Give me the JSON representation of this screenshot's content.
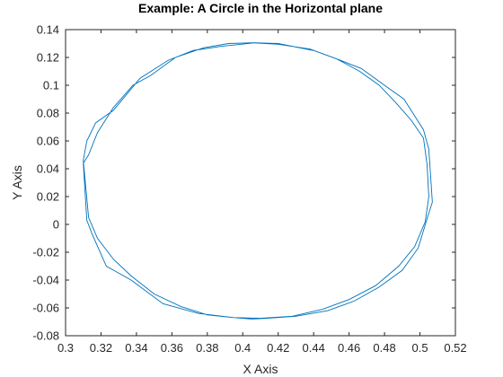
{
  "chart_data": {
    "type": "line",
    "title": "Example: A Circle in the Horizontal plane",
    "xlabel": "X Axis",
    "ylabel": "Y Axis",
    "xlim": [
      0.3,
      0.52
    ],
    "ylim": [
      -0.08,
      0.14
    ],
    "xticks": [
      0.3,
      0.32,
      0.34,
      0.36,
      0.38,
      0.4,
      0.42,
      0.44,
      0.46,
      0.48,
      0.5,
      0.52
    ],
    "xtick_labels": [
      "0.3",
      "0.32",
      "0.34",
      "0.36",
      "0.38",
      "0.4",
      "0.42",
      "0.44",
      "0.46",
      "0.48",
      "0.5",
      "0.52"
    ],
    "yticks": [
      -0.08,
      -0.06,
      -0.04,
      -0.02,
      0,
      0.02,
      0.04,
      0.06,
      0.08,
      0.1,
      0.12,
      0.14
    ],
    "ytick_labels": [
      "-0.08",
      "-0.06",
      "-0.04",
      "-0.02",
      "0",
      "0.02",
      "0.04",
      "0.06",
      "0.08",
      "0.1",
      "0.12",
      "0.14"
    ],
    "grid": false,
    "series": [
      {
        "color": "#0072BD",
        "x": [
          0.407,
          0.42,
          0.44,
          0.455,
          0.467,
          0.48,
          0.491,
          0.502,
          0.505,
          0.507,
          0.504,
          0.499,
          0.49,
          0.477,
          0.463,
          0.448,
          0.43,
          0.413,
          0.405,
          0.395,
          0.375,
          0.355,
          0.337,
          0.323,
          0.315,
          0.312,
          0.31,
          0.313,
          0.318,
          0.327,
          0.338,
          0.348,
          0.362,
          0.378,
          0.392,
          0.405,
          0.42,
          0.438,
          0.453,
          0.466,
          0.477,
          0.486,
          0.495,
          0.502,
          0.504,
          0.505,
          0.503,
          0.497,
          0.488,
          0.475,
          0.46,
          0.445,
          0.428,
          0.41,
          0.395,
          0.38,
          0.365,
          0.35,
          0.337,
          0.327,
          0.318,
          0.313,
          0.31,
          0.312,
          0.317,
          0.327,
          0.342,
          0.358,
          0.372,
          0.388,
          0.407
        ],
        "y": [
          0.1305,
          0.13,
          0.125,
          0.118,
          0.112,
          0.1,
          0.09,
          0.068,
          0.054,
          0.016,
          0.004,
          -0.017,
          -0.033,
          -0.045,
          -0.055,
          -0.062,
          -0.066,
          -0.0675,
          -0.068,
          -0.067,
          -0.064,
          -0.057,
          -0.04,
          -0.03,
          -0.007,
          0.003,
          0.044,
          0.05,
          0.066,
          0.084,
          0.1,
          0.107,
          0.12,
          0.127,
          0.13,
          0.1305,
          0.1295,
          0.126,
          0.119,
          0.11,
          0.1,
          0.088,
          0.075,
          0.062,
          0.043,
          0.02,
          0.002,
          -0.016,
          -0.03,
          -0.044,
          -0.054,
          -0.061,
          -0.066,
          -0.0675,
          -0.067,
          -0.065,
          -0.059,
          -0.05,
          -0.037,
          -0.025,
          -0.01,
          0.005,
          0.046,
          0.06,
          0.073,
          0.082,
          0.105,
          0.118,
          0.125,
          0.128,
          0.1305
        ]
      }
    ]
  }
}
